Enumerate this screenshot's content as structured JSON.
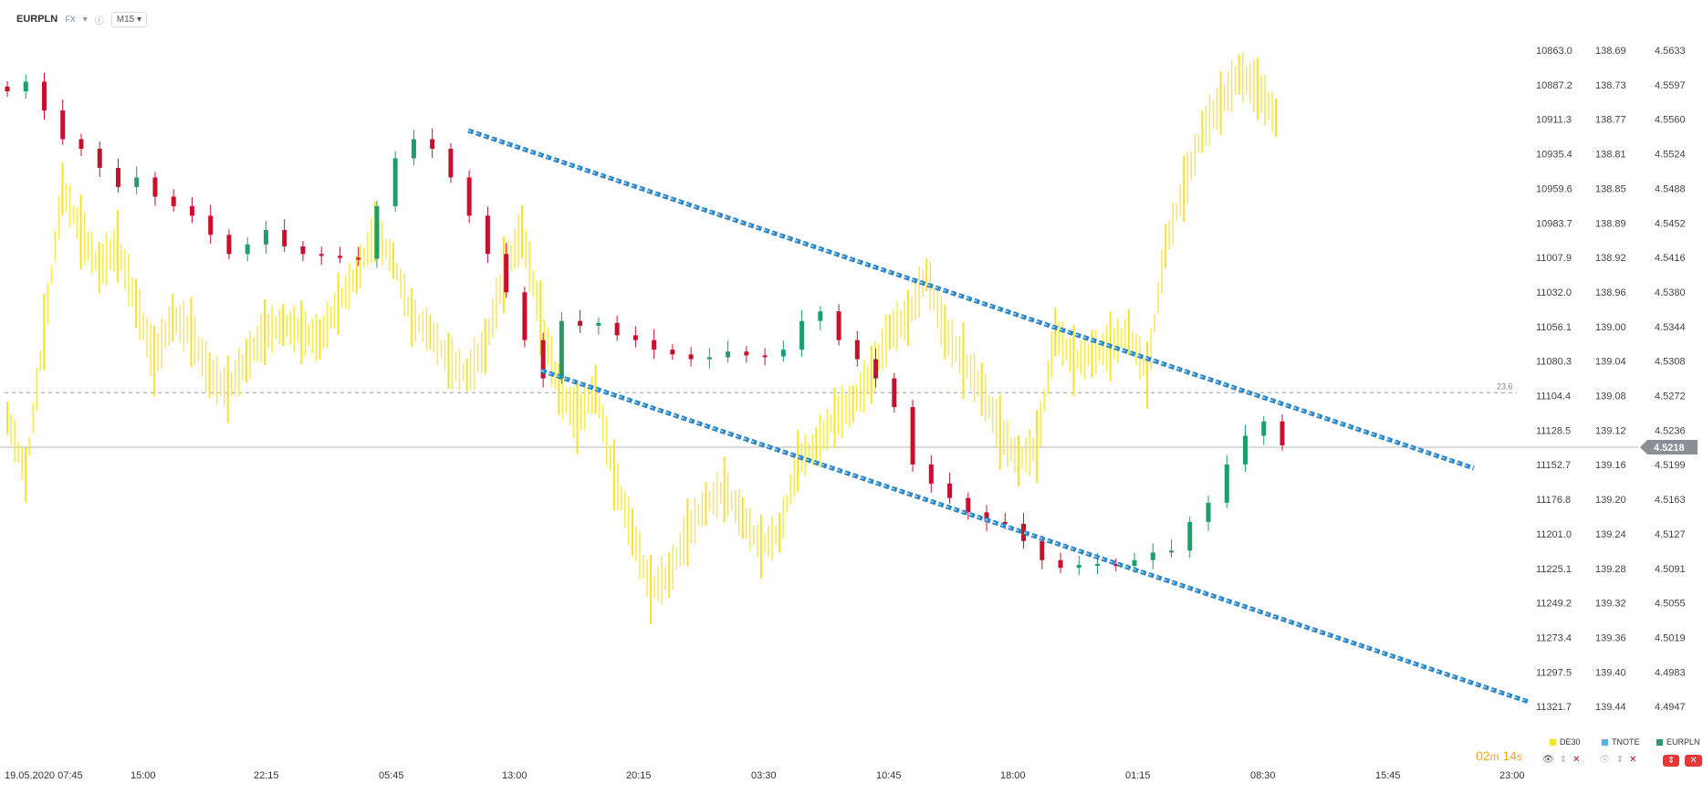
{
  "header": {
    "symbol": "EURPLN",
    "market": "FX",
    "interval": "M15",
    "dropdown_icon": "chevron-down-icon",
    "info_icon": "info-icon"
  },
  "axes": {
    "de30": [
      "10863.0",
      "10887.2",
      "10911.3",
      "10935.4",
      "10959.6",
      "10983.7",
      "11007.9",
      "11032.0",
      "11056.1",
      "11080.3",
      "11104.4",
      "11128.5",
      "11152.7",
      "11176.8",
      "11201.0",
      "11225.1",
      "11249.2",
      "11273.4",
      "11297.5",
      "11321.7"
    ],
    "tnote": [
      "138.69",
      "138.73",
      "138.77",
      "138.81",
      "138.85",
      "138.89",
      "138.92",
      "138.96",
      "139.00",
      "139.04",
      "139.08",
      "139.12",
      "139.16",
      "139.20",
      "139.24",
      "139.28",
      "139.32",
      "139.36",
      "139.40",
      "139.44"
    ],
    "eurpln": [
      "4.5633",
      "4.5597",
      "4.5560",
      "4.5524",
      "4.5488",
      "4.5452",
      "4.5416",
      "4.5380",
      "4.5344",
      "4.5308",
      "4.5272",
      "4.5236",
      "4.5199",
      "4.5163",
      "4.5127",
      "4.5091",
      "4.5055",
      "4.5019",
      "4.4983",
      "4.4947"
    ],
    "time_labels": [
      "19.05.2020  07:45",
      "15:00",
      "22:15",
      "05:45",
      "13:00",
      "20:15",
      "03:30",
      "10:45",
      "18:00",
      "01:15",
      "08:30",
      "15:45",
      "23:00"
    ]
  },
  "current_price": "4.5218",
  "fib_label": "23.6",
  "legend": [
    {
      "name": "DE30",
      "color": "#f5e32a"
    },
    {
      "name": "TNOTE",
      "color": "#4fb3e8"
    },
    {
      "name": "EURPLN",
      "color": "#1e9e6a"
    }
  ],
  "countdown": {
    "minutes": "02",
    "m": "m",
    "seconds": "14",
    "s": "s"
  },
  "colors": {
    "up": "#1e9e6a",
    "down": "#c8102e",
    "de30": "#f5e32a",
    "trend": "#2d86c8"
  },
  "chart_data": {
    "type": "candlestick",
    "symbol": "EURPLN",
    "interval": "M15",
    "ylim": [
      4.4947,
      4.5633
    ],
    "last_price": 4.5218,
    "overlays": [
      "DE30",
      "TNOTE"
    ],
    "trendlines": [
      {
        "name": "channel-upper",
        "from": {
          "time": "05:45 +0.85",
          "price": 4.5545
        },
        "to": {
          "time": "15:45 +0.6",
          "price": 4.521
        }
      },
      {
        "name": "channel-lower",
        "from": {
          "time": "13:00 +0.2",
          "price": 4.5305
        },
        "to": {
          "time": "23:00",
          "price": 4.4947
        }
      }
    ],
    "fib_level": {
      "label": "23.6",
      "price": 4.5275
    },
    "eurpln_closes": [
      4.559,
      4.56,
      4.557,
      4.554,
      4.553,
      4.551,
      4.549,
      4.55,
      4.548,
      4.547,
      4.546,
      4.544,
      4.542,
      4.543,
      4.5445,
      4.5428,
      4.542,
      4.5418,
      4.5416,
      4.5415,
      4.547,
      4.552,
      4.554,
      4.553,
      4.55,
      4.546,
      4.542,
      4.538,
      4.533,
      4.529,
      4.535,
      4.5345,
      4.5348,
      4.5335,
      4.533,
      4.532,
      4.5315,
      4.531,
      4.5312,
      4.5318,
      4.5314,
      4.5313,
      4.532,
      4.535,
      4.536,
      4.533,
      4.531,
      4.529,
      4.526,
      4.52,
      4.518,
      4.5165,
      4.515,
      4.514,
      4.5138,
      4.512,
      4.51,
      4.5092,
      4.5095,
      4.5096,
      4.5094,
      4.51,
      4.5108,
      4.511,
      4.514,
      4.516,
      4.52,
      4.523,
      4.5245,
      4.522
    ],
    "de30_points": [
      11120,
      11160,
      11060,
      10960,
      10990,
      11015,
      11000,
      11040,
      11080,
      11050,
      11060,
      11090,
      11100,
      11080,
      11060,
      11055,
      11060,
      11065,
      11040,
      11020,
      10990,
      11010,
      11050,
      11060,
      11080,
      11090,
      11070,
      11020,
      10990,
      11050,
      11100,
      11120,
      11100,
      11160,
      11200,
      11240,
      11230,
      11200,
      11180,
      11170,
      11190,
      11210,
      11200,
      11150,
      11140,
      11120,
      11110,
      11090,
      11060,
      11050,
      11020,
      11060,
      11080,
      11100,
      11130,
      11150,
      11140,
      11060,
      11080,
      11075,
      11070,
      11060,
      11090,
      11000,
      10960,
      10920,
      10900,
      10880,
      10890,
      10910
    ]
  }
}
